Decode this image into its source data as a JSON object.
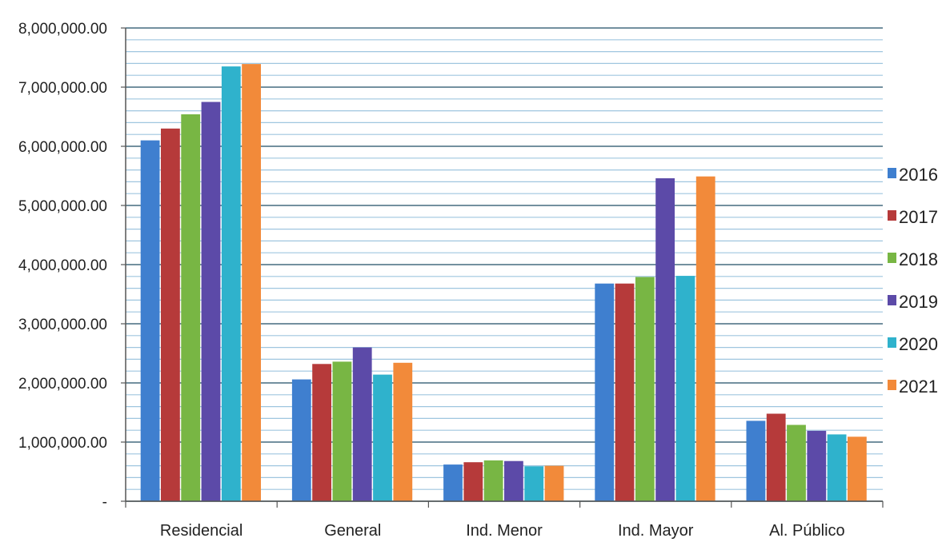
{
  "chart_data": {
    "type": "bar",
    "title": "",
    "xlabel": "",
    "ylabel": "",
    "categories": [
      "Residencial",
      "General",
      "Ind. Menor",
      "Ind. Mayor",
      "Al. Público"
    ],
    "series": [
      {
        "name": "2016",
        "color": "#3f7fcf",
        "values": [
          6100000,
          2060000,
          620000,
          3680000,
          1360000
        ]
      },
      {
        "name": "2017",
        "color": "#b63a3a",
        "values": [
          6300000,
          2320000,
          660000,
          3680000,
          1480000
        ]
      },
      {
        "name": "2018",
        "color": "#78b644",
        "values": [
          6540000,
          2360000,
          690000,
          3790000,
          1290000
        ]
      },
      {
        "name": "2019",
        "color": "#5c4aa8",
        "values": [
          6750000,
          2600000,
          680000,
          5460000,
          1190000
        ]
      },
      {
        "name": "2020",
        "color": "#2fb2cc",
        "values": [
          7350000,
          2140000,
          590000,
          3810000,
          1130000
        ]
      },
      {
        "name": "2021",
        "color": "#f28a3a",
        "values": [
          7390000,
          2340000,
          600000,
          5490000,
          1090000
        ]
      }
    ],
    "ylim": [
      0,
      8000000
    ],
    "yticks": [
      {
        "value": 0,
        "label": "-"
      },
      {
        "value": 1000000,
        "label": "1,000,000.00"
      },
      {
        "value": 2000000,
        "label": "2,000,000.00"
      },
      {
        "value": 3000000,
        "label": "3,000,000.00"
      },
      {
        "value": 4000000,
        "label": "4,000,000.00"
      },
      {
        "value": 5000000,
        "label": "5,000,000.00"
      },
      {
        "value": 6000000,
        "label": "6,000,000.00"
      },
      {
        "value": 7000000,
        "label": "7,000,000.00"
      },
      {
        "value": 8000000,
        "label": "8,000,000.00"
      }
    ],
    "grid": true,
    "legend_position": "right"
  }
}
